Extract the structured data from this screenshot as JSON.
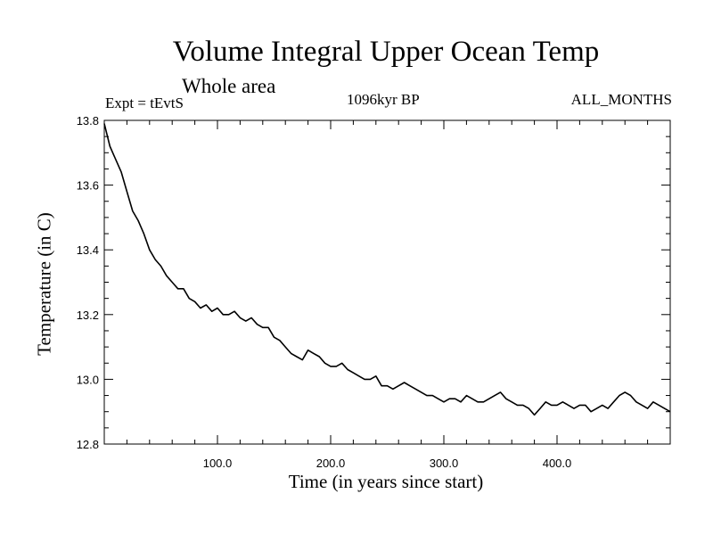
{
  "chart_data": {
    "type": "line",
    "title": "Volume Integral Upper Ocean Temp",
    "subtitle": "Whole area",
    "experiment": "Expt = tEvtS",
    "period": "1096kyr BP",
    "months": "ALL_MONTHS",
    "xlabel": "Time (in years since start)",
    "ylabel": "Temperature (in C)",
    "xlim": [
      0,
      500
    ],
    "ylim": [
      12.8,
      13.8
    ],
    "x_ticks": [
      100,
      200,
      300,
      400
    ],
    "x_tick_labels": [
      "100.0",
      "200.0",
      "300.0",
      "400.0"
    ],
    "y_ticks": [
      12.8,
      13.0,
      13.2,
      13.4,
      13.6,
      13.8
    ],
    "y_tick_labels": [
      "12.8",
      "13.0",
      "13.2",
      "13.4",
      "13.6",
      "13.8"
    ],
    "series": [
      {
        "name": "temperature",
        "x": [
          0,
          5,
          10,
          15,
          20,
          25,
          30,
          35,
          40,
          45,
          50,
          55,
          60,
          65,
          70,
          75,
          80,
          85,
          90,
          95,
          100,
          105,
          110,
          115,
          120,
          125,
          130,
          135,
          140,
          145,
          150,
          155,
          160,
          165,
          170,
          175,
          180,
          185,
          190,
          195,
          200,
          205,
          210,
          215,
          220,
          225,
          230,
          235,
          240,
          245,
          250,
          255,
          260,
          265,
          270,
          275,
          280,
          285,
          290,
          295,
          300,
          305,
          310,
          315,
          320,
          325,
          330,
          335,
          340,
          345,
          350,
          355,
          360,
          365,
          370,
          375,
          380,
          385,
          390,
          395,
          400,
          405,
          410,
          415,
          420,
          425,
          430,
          435,
          440,
          445,
          450,
          455,
          460,
          465,
          470,
          475,
          480,
          485,
          490,
          495,
          500
        ],
        "values": [
          13.79,
          13.72,
          13.68,
          13.64,
          13.58,
          13.52,
          13.49,
          13.45,
          13.4,
          13.37,
          13.35,
          13.32,
          13.3,
          13.28,
          13.28,
          13.25,
          13.24,
          13.22,
          13.23,
          13.21,
          13.22,
          13.2,
          13.2,
          13.21,
          13.19,
          13.18,
          13.19,
          13.17,
          13.16,
          13.16,
          13.13,
          13.12,
          13.1,
          13.08,
          13.07,
          13.06,
          13.09,
          13.08,
          13.07,
          13.05,
          13.04,
          13.04,
          13.05,
          13.03,
          13.02,
          13.01,
          13.0,
          13.0,
          13.01,
          12.98,
          12.98,
          12.97,
          12.98,
          12.99,
          12.98,
          12.97,
          12.96,
          12.95,
          12.95,
          12.94,
          12.93,
          12.94,
          12.94,
          12.93,
          12.95,
          12.94,
          12.93,
          12.93,
          12.94,
          12.95,
          12.96,
          12.94,
          12.93,
          12.92,
          12.92,
          12.91,
          12.89,
          12.91,
          12.93,
          12.92,
          12.92,
          12.93,
          12.92,
          12.91,
          12.92,
          12.92,
          12.9,
          12.91,
          12.92,
          12.91,
          12.93,
          12.95,
          12.96,
          12.95,
          12.93,
          12.92,
          12.91,
          12.93,
          12.92,
          12.91,
          12.9
        ]
      }
    ]
  }
}
